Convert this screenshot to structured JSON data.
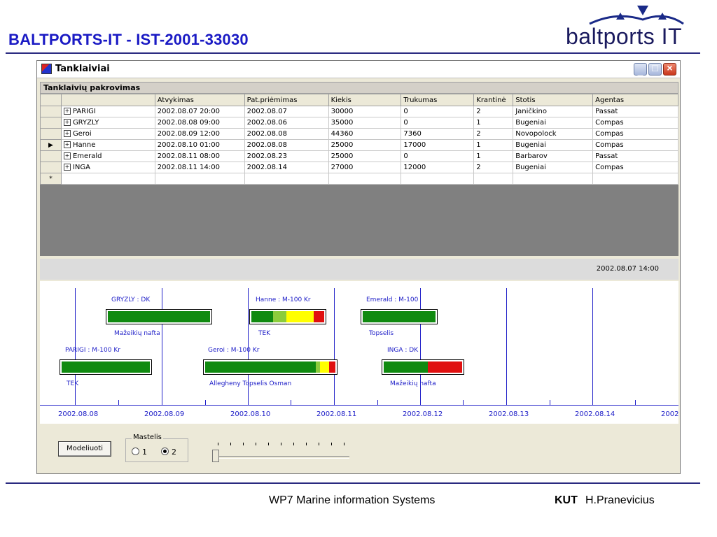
{
  "slide": {
    "title": "BALTPORTS-IT - IST-2001-33030",
    "logo_text": "baltports IT",
    "footer_center": "WP7 Marine information Systems",
    "footer_org": "KUT",
    "footer_author": "H.Pranevicius",
    "colors": {
      "title": "#1a1ac4",
      "rule": "#2a2a80"
    }
  },
  "window": {
    "title": "Tanklaiviai",
    "buttons": [
      "minimize-icon",
      "maximize-icon",
      "close-icon"
    ]
  },
  "grid": {
    "caption": "Tanklaivių pakrovimas",
    "columns": [
      "",
      "Atvykimas",
      "Pat.priėmimas",
      "Kiekis",
      "Trukumas",
      "Krantinė",
      "Stotis",
      "Agentas"
    ],
    "rows": [
      {
        "name": "PARIGI",
        "atvykimas": "2002.08.07 20:00",
        "priemimas": "2002.08.07",
        "kiekis": "30000",
        "trukumas": "0",
        "krantine": "2",
        "stotis": "Janičkino",
        "agentas": "Passat"
      },
      {
        "name": "GRYZLY",
        "atvykimas": "2002.08.08 09:00",
        "priemimas": "2002.08.06",
        "kiekis": "35000",
        "trukumas": "0",
        "krantine": "1",
        "stotis": "Bugeniai",
        "agentas": "Compas"
      },
      {
        "name": "Geroi",
        "atvykimas": "2002.08.09 12:00",
        "priemimas": "2002.08.08",
        "kiekis": "44360",
        "trukumas": "7360",
        "krantine": "2",
        "stotis": "Novopolock",
        "agentas": "Compas"
      },
      {
        "name": "Hanne",
        "atvykimas": "2002.08.10 01:00",
        "priemimas": "2002.08.08",
        "kiekis": "25000",
        "trukumas": "17000",
        "krantine": "1",
        "stotis": "Bugeniai",
        "agentas": "Compas"
      },
      {
        "name": "Emerald",
        "atvykimas": "2002.08.11 08:00",
        "priemimas": "2002.08.23",
        "kiekis": "25000",
        "trukumas": "0",
        "krantine": "1",
        "stotis": "Barbarov",
        "agentas": "Passat"
      },
      {
        "name": "INGA",
        "atvykimas": "2002.08.11 14:00",
        "priemimas": "2002.08.14",
        "kiekis": "27000",
        "trukumas": "12000",
        "krantine": "2",
        "stotis": "Bugeniai",
        "agentas": "Compas"
      }
    ],
    "current_row_index": 3,
    "new_row_marker": "*"
  },
  "timeline": {
    "current_time": "2002.08.07  14:00",
    "axis_labels": [
      "2002.08.08",
      "2002.08.09",
      "2002.08.10",
      "2002.08.11",
      "2002.08.12",
      "2002.08.13",
      "2002.08.14",
      "2002"
    ],
    "vessels": [
      {
        "label": "GRYZLY : DK",
        "cargo": "Mažeikių nafta"
      },
      {
        "label": "Hanne : M-100 Kr",
        "cargo": "TEK"
      },
      {
        "label": "Emerald : M-100",
        "cargo": "Topselis"
      },
      {
        "label": "PARIGI : M-100 Kr",
        "cargo": "TEK"
      },
      {
        "label": "Geroi : M-100 Kr",
        "cargo": "Allegheny Topselis Osman"
      },
      {
        "label": "INGA : DK",
        "cargo": "Mažeikių nafta"
      }
    ],
    "colors": {
      "green": "#108a10",
      "lightgreen": "#8ccc3c",
      "yellow": "#ffff00",
      "red": "#e01010",
      "line": "#2020c8"
    }
  },
  "controls": {
    "model_button": "Modeliuoti",
    "scale_group": "Mastelis",
    "scale_options": [
      "1",
      "2"
    ],
    "scale_selected": "2"
  }
}
